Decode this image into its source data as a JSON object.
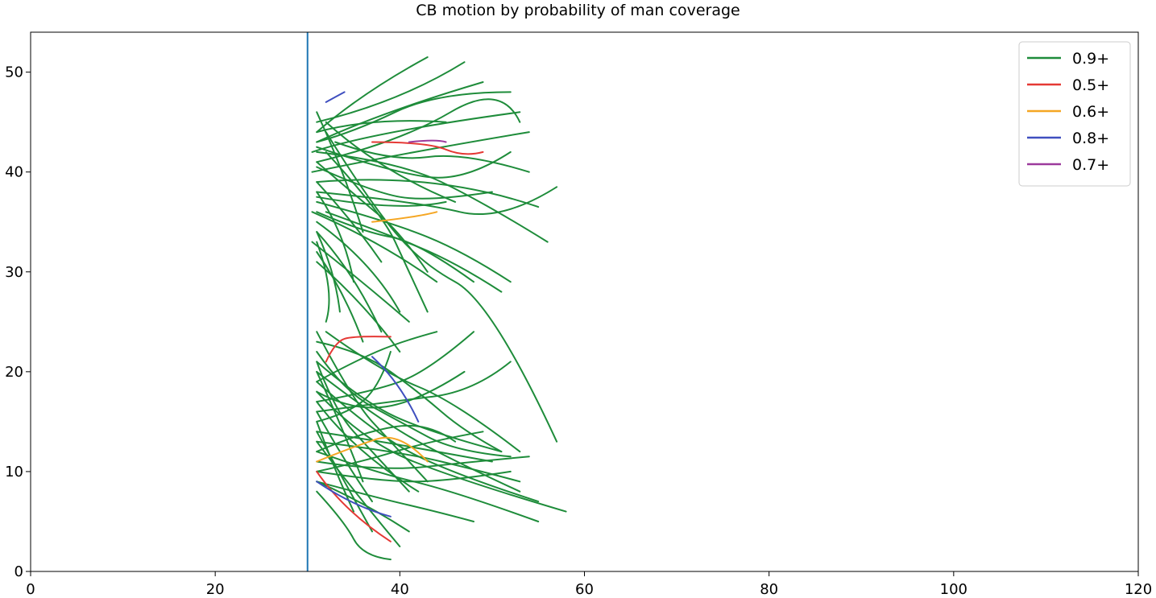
{
  "chart_data": {
    "type": "line",
    "title": "CB motion by probability of man coverage",
    "xlabel": "",
    "ylabel": "",
    "xlim": [
      0,
      120
    ],
    "ylim": [
      0,
      54
    ],
    "x_ticks": [
      0,
      20,
      40,
      60,
      80,
      100,
      120
    ],
    "y_ticks": [
      0,
      10,
      20,
      30,
      40,
      50
    ],
    "grid": false,
    "legend_position": "top-right",
    "reference_line": {
      "x": 30,
      "color": "#1f77b4"
    },
    "series": [
      {
        "name": "0.9+",
        "color": "#1e8c3a",
        "paths": [
          [
            [
              31,
              44
            ],
            [
              36,
              48
            ],
            [
              43,
              51.5
            ]
          ],
          [
            [
              31,
              43
            ],
            [
              38,
              46
            ],
            [
              49,
              49
            ]
          ],
          [
            [
              30.5,
              42
            ],
            [
              37,
              44
            ],
            [
              53,
              46
            ]
          ],
          [
            [
              31,
              41
            ],
            [
              40,
              43
            ],
            [
              51,
              49
            ],
            [
              53,
              45
            ]
          ],
          [
            [
              30.5,
              40
            ],
            [
              41,
              42
            ],
            [
              54,
              44
            ]
          ],
          [
            [
              31,
              39
            ],
            [
              44,
              40
            ],
            [
              55,
              36.5
            ]
          ],
          [
            [
              31,
              38
            ],
            [
              42,
              37
            ],
            [
              51,
              35
            ],
            [
              57,
              38.5
            ]
          ],
          [
            [
              31,
              37
            ],
            [
              39,
              35
            ],
            [
              47,
              32
            ],
            [
              52,
              29
            ]
          ],
          [
            [
              30.5,
              36
            ],
            [
              38,
              33
            ],
            [
              44,
              29
            ]
          ],
          [
            [
              31,
              35
            ],
            [
              37,
              31
            ],
            [
              40,
              26
            ]
          ],
          [
            [
              31,
              34
            ],
            [
              35,
              30
            ],
            [
              38,
              24
            ]
          ],
          [
            [
              30.5,
              33
            ],
            [
              36,
              29
            ],
            [
              41,
              25
            ]
          ],
          [
            [
              31,
              32
            ],
            [
              34,
              28
            ],
            [
              36,
              23
            ]
          ],
          [
            [
              31,
              31
            ],
            [
              36,
              27
            ],
            [
              40,
              22
            ]
          ],
          [
            [
              31,
              46
            ],
            [
              34,
              40
            ],
            [
              36,
              34
            ]
          ],
          [
            [
              32,
              45
            ],
            [
              38,
              40
            ],
            [
              46,
              37
            ]
          ],
          [
            [
              31,
              45
            ],
            [
              40,
              47
            ],
            [
              47,
              51
            ]
          ],
          [
            [
              32,
              44
            ],
            [
              36,
              38
            ],
            [
              42,
              31
            ],
            [
              50,
              27
            ],
            [
              57,
              13
            ]
          ],
          [
            [
              33,
              43
            ],
            [
              39,
              41
            ],
            [
              47,
              42
            ],
            [
              54,
              40
            ]
          ],
          [
            [
              31,
              43
            ],
            [
              35,
              44
            ],
            [
              44,
              48
            ],
            [
              52,
              48
            ]
          ],
          [
            [
              31,
              42
            ],
            [
              40,
              41
            ],
            [
              49,
              37
            ],
            [
              56,
              33
            ]
          ],
          [
            [
              31,
              41
            ],
            [
              36,
              37
            ],
            [
              40,
              34
            ],
            [
              43,
              30
            ]
          ],
          [
            [
              31,
              39
            ],
            [
              35,
              35
            ],
            [
              38,
              31
            ]
          ],
          [
            [
              31,
              38
            ],
            [
              34,
              34
            ],
            [
              35,
              29
            ]
          ],
          [
            [
              32,
              36
            ],
            [
              38,
              34
            ],
            [
              46,
              31
            ],
            [
              51,
              28
            ]
          ],
          [
            [
              31,
              36
            ],
            [
              36,
              34
            ],
            [
              42,
              33
            ],
            [
              48,
              29
            ]
          ],
          [
            [
              31,
              44
            ],
            [
              37,
              45.5
            ],
            [
              45,
              45
            ]
          ],
          [
            [
              31,
              42.5
            ],
            [
              39,
              40
            ],
            [
              47,
              39
            ],
            [
              52,
              42
            ]
          ],
          [
            [
              31,
              40.5
            ],
            [
              37,
              38
            ],
            [
              43,
              37
            ],
            [
              50,
              38
            ]
          ],
          [
            [
              31,
              37.5
            ],
            [
              40,
              36
            ],
            [
              45,
              37
            ]
          ],
          [
            [
              32,
              42
            ],
            [
              38,
              36
            ],
            [
              41,
              30
            ],
            [
              43,
              26
            ]
          ],
          [
            [
              31,
              34
            ],
            [
              33,
              30
            ],
            [
              33.5,
              26
            ]
          ],
          [
            [
              31,
              33
            ],
            [
              33,
              28
            ],
            [
              32,
              25
            ]
          ],
          [
            [
              31,
              22
            ],
            [
              34,
              18
            ],
            [
              40,
              15
            ],
            [
              46,
              12
            ],
            [
              52,
              11.5
            ]
          ],
          [
            [
              31,
              21
            ],
            [
              36,
              17
            ],
            [
              43,
              14
            ],
            [
              51,
              12
            ]
          ],
          [
            [
              31,
              20
            ],
            [
              38,
              15
            ],
            [
              46,
              11
            ],
            [
              53,
              8
            ]
          ],
          [
            [
              31,
              19
            ],
            [
              37,
              14
            ],
            [
              45,
              10
            ],
            [
              55,
              7
            ]
          ],
          [
            [
              31,
              18
            ],
            [
              36,
              13
            ],
            [
              47,
              9
            ],
            [
              58,
              6
            ]
          ],
          [
            [
              31,
              17
            ],
            [
              35,
              12
            ],
            [
              42,
              8
            ]
          ],
          [
            [
              31,
              16
            ],
            [
              34,
              11
            ],
            [
              37,
              7
            ]
          ],
          [
            [
              31,
              15
            ],
            [
              33,
              10
            ],
            [
              35,
              6
            ]
          ],
          [
            [
              31,
              14
            ],
            [
              34,
              9
            ],
            [
              37,
              4
            ]
          ],
          [
            [
              31,
              13
            ],
            [
              35,
              8
            ],
            [
              40,
              2.5
            ]
          ],
          [
            [
              31,
              12
            ],
            [
              37,
              10
            ],
            [
              46,
              8
            ],
            [
              55,
              5
            ]
          ],
          [
            [
              31,
              11
            ],
            [
              38,
              10
            ],
            [
              48,
              11
            ],
            [
              54,
              11.5
            ]
          ],
          [
            [
              31,
              10
            ],
            [
              38,
              9
            ],
            [
              45,
              9
            ],
            [
              52,
              10
            ]
          ],
          [
            [
              31,
              9
            ],
            [
              36,
              7
            ],
            [
              41,
              4
            ]
          ],
          [
            [
              31,
              8
            ],
            [
              34,
              5
            ],
            [
              36,
              1.5
            ],
            [
              39,
              1.2
            ]
          ],
          [
            [
              31,
              23
            ],
            [
              36,
              22
            ],
            [
              42,
              18
            ],
            [
              47,
              14
            ],
            [
              51,
              12
            ]
          ],
          [
            [
              32,
              24
            ],
            [
              38,
              20
            ],
            [
              46,
              17
            ],
            [
              53,
              12
            ]
          ],
          [
            [
              31,
              24
            ],
            [
              35,
              17
            ],
            [
              39,
              13
            ],
            [
              43,
              9
            ]
          ],
          [
            [
              31,
              21
            ],
            [
              33,
              16
            ],
            [
              37,
              12
            ],
            [
              41,
              8
            ]
          ],
          [
            [
              31,
              20
            ],
            [
              34,
              14
            ],
            [
              36,
              9
            ]
          ],
          [
            [
              31,
              18
            ],
            [
              35,
              16
            ],
            [
              42,
              17
            ],
            [
              47,
              20
            ]
          ],
          [
            [
              31,
              17
            ],
            [
              37,
              18
            ],
            [
              43,
              20
            ],
            [
              48,
              24
            ]
          ],
          [
            [
              31,
              16
            ],
            [
              39,
              17
            ],
            [
              48,
              18
            ],
            [
              52,
              21
            ]
          ],
          [
            [
              31,
              14
            ],
            [
              38,
              13
            ],
            [
              44,
              12
            ],
            [
              50,
              11
            ]
          ],
          [
            [
              31,
              13
            ],
            [
              40,
              12
            ],
            [
              49,
              10
            ],
            [
              53,
              9
            ]
          ],
          [
            [
              31,
              12
            ],
            [
              36,
              14
            ],
            [
              43,
              15
            ],
            [
              46,
              13
            ]
          ],
          [
            [
              31,
              19
            ],
            [
              35,
              21
            ],
            [
              40,
              23
            ],
            [
              44,
              24
            ]
          ],
          [
            [
              31,
              15
            ],
            [
              35,
              16
            ],
            [
              38,
              19
            ],
            [
              39,
              22
            ]
          ],
          [
            [
              31,
              10
            ],
            [
              36,
              11
            ],
            [
              43,
              13
            ],
            [
              49,
              14
            ]
          ],
          [
            [
              31,
              9
            ],
            [
              37,
              7.5
            ],
            [
              44,
              6
            ],
            [
              48,
              5
            ]
          ]
        ]
      },
      {
        "name": "0.5+",
        "color": "#e53935",
        "paths": [
          [
            [
              37,
              43
            ],
            [
              43,
              43
            ],
            [
              47,
              41.5
            ],
            [
              49,
              42
            ]
          ],
          [
            [
              32,
              21
            ],
            [
              33,
              23
            ],
            [
              35,
              23.6
            ],
            [
              39,
              23.5
            ]
          ],
          [
            [
              31,
              10
            ],
            [
              34,
              6
            ],
            [
              39,
              3
            ]
          ]
        ]
      },
      {
        "name": "0.6+",
        "color": "#f5a623",
        "paths": [
          [
            [
              31,
              11
            ],
            [
              35,
              12.5
            ],
            [
              40,
              14
            ],
            [
              43,
              11
            ]
          ],
          [
            [
              37,
              35
            ],
            [
              42,
              35.5
            ],
            [
              44,
              36
            ]
          ]
        ]
      },
      {
        "name": "0.8+",
        "color": "#3f4fbf",
        "paths": [
          [
            [
              32,
              47
            ],
            [
              33,
              47.5
            ],
            [
              34,
              48
            ]
          ],
          [
            [
              37,
              21.5
            ],
            [
              40,
              19
            ],
            [
              42,
              15
            ]
          ],
          [
            [
              31,
              9
            ],
            [
              35,
              6.5
            ],
            [
              39,
              5.5
            ]
          ]
        ]
      },
      {
        "name": "0.7+",
        "color": "#9c3a9c",
        "paths": [
          [
            [
              41,
              43
            ],
            [
              44,
              43.3
            ],
            [
              45,
              43
            ]
          ]
        ]
      }
    ]
  }
}
